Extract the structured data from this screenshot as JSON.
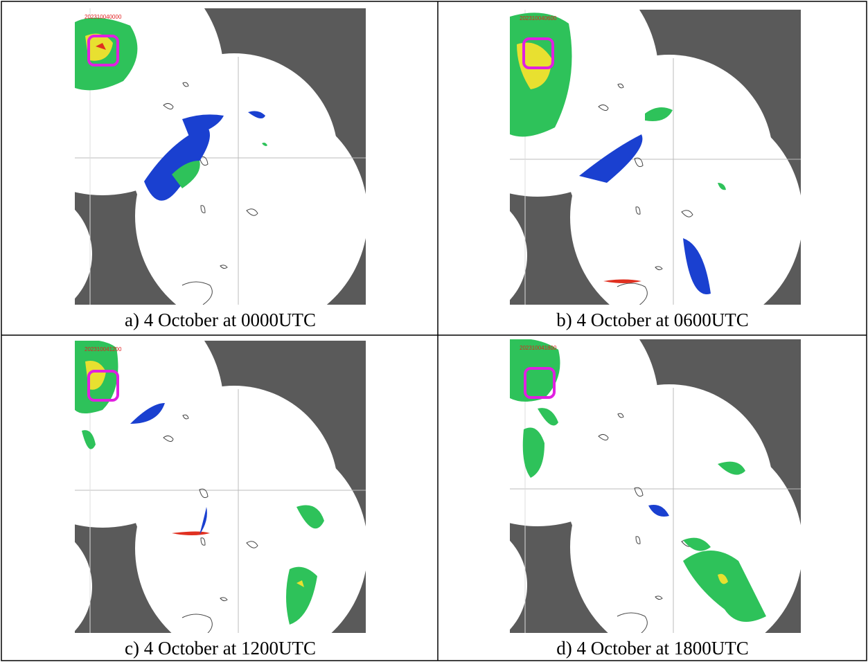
{
  "panels": [
    {
      "timestamp": "202310040000",
      "caption": "a) 4 October at 0000UTC"
    },
    {
      "timestamp": "202310040600",
      "caption": "b) 4 October at 0600UTC"
    },
    {
      "timestamp": "202310041200",
      "caption": "c) 4 October at 1200UTC"
    },
    {
      "timestamp": "202310041800",
      "caption": "d) 4 October at 1800UTC"
    }
  ]
}
